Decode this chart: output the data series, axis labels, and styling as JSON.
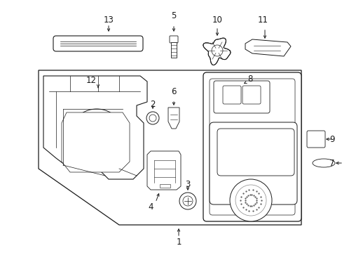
{
  "bg_color": "#ffffff",
  "line_color": "#1a1a1a",
  "fig_width": 4.89,
  "fig_height": 3.6,
  "dpi": 100,
  "font_size": 8.5
}
